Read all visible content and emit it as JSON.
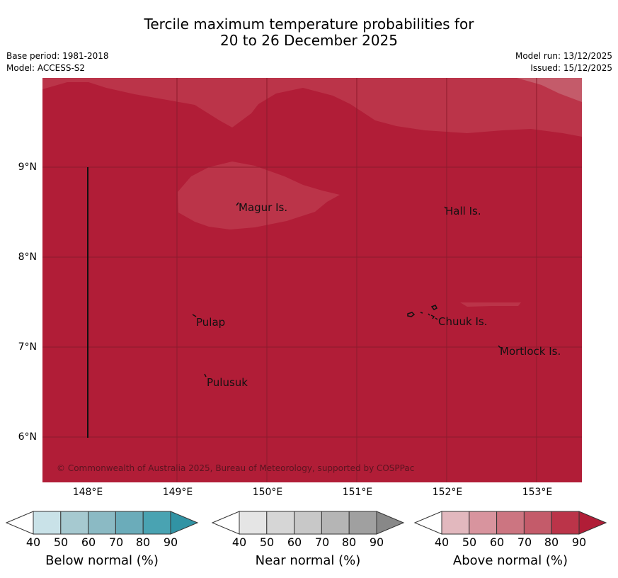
{
  "title": {
    "line1": "Tercile maximum temperature probabilities for",
    "line2": "20 to 26 December 2025"
  },
  "meta": {
    "base_period": "Base period: 1981-2018",
    "model": "Model: ACCESS-S2",
    "model_run": "Model run: 13/12/2025",
    "issued": "Issued: 15/12/2025"
  },
  "map": {
    "background_color": "#b11d37",
    "lat_labels": [
      "9°N",
      "8°N",
      "7°N",
      "6°N"
    ],
    "lon_labels": [
      "148°E",
      "149°E",
      "150°E",
      "151°E",
      "152°E",
      "153°E"
    ],
    "places": [
      "Magur Is.",
      "Hall Is.",
      "Pulap",
      "Chuuk Is.",
      "Mortlock Is.",
      "Pulusuk"
    ],
    "copyright": "© Commonwealth of Australia 2025, Bureau of Meteorology, supported by COSPPac"
  },
  "colorbars": {
    "ticks": [
      "40",
      "50",
      "60",
      "70",
      "80",
      "90"
    ],
    "below": {
      "label": "Below normal (%)",
      "colors": [
        "#ffffff",
        "#c9e2e8",
        "#a6c9d0",
        "#8bbac4",
        "#6bacba",
        "#49a3b2",
        "#3193a4"
      ]
    },
    "near": {
      "label": "Near normal (%)",
      "colors": [
        "#ffffff",
        "#e5e5e5",
        "#d6d6d6",
        "#c8c8c8",
        "#b5b5b5",
        "#a0a0a0",
        "#888888"
      ]
    },
    "above": {
      "label": "Above normal (%)",
      "colors": [
        "#ffffff",
        "#e2b8be",
        "#d8949e",
        "#cc7581",
        "#c45b6a",
        "#bb3449",
        "#b11d37"
      ]
    }
  }
}
